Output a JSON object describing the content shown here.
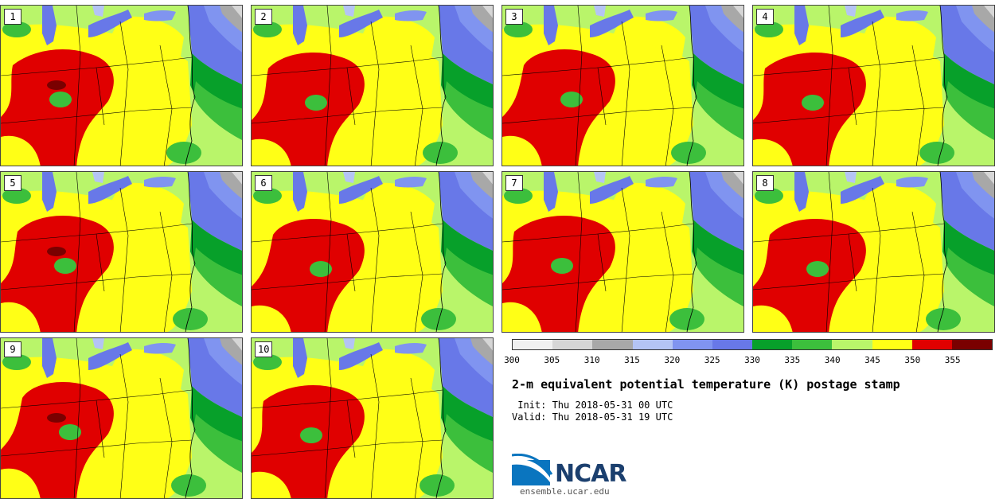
{
  "panels": [
    "1",
    "2",
    "3",
    "4",
    "5",
    "6",
    "7",
    "8",
    "9",
    "10"
  ],
  "colorbar": {
    "bins": [
      {
        "range": "300-305",
        "color": "#f0f0f0"
      },
      {
        "range": "305-310",
        "color": "#d6d6d6"
      },
      {
        "range": "310-315",
        "color": "#a8a8a8"
      },
      {
        "range": "315-320",
        "color": "#b4c4f4"
      },
      {
        "range": "320-325",
        "color": "#8094f0"
      },
      {
        "range": "325-330",
        "color": "#6878e8"
      },
      {
        "range": "330-335",
        "color": "#07a02a"
      },
      {
        "range": "335-340",
        "color": "#3cbf3c"
      },
      {
        "range": "340-345",
        "color": "#b9f56a"
      },
      {
        "range": "345-350",
        "color": "#ffff16"
      },
      {
        "range": "350-355",
        "color": "#e00000"
      },
      {
        "range": "355-360",
        "color": "#7a0000"
      }
    ],
    "tick_labels": [
      "300",
      "305",
      "310",
      "315",
      "320",
      "325",
      "330",
      "335",
      "340",
      "345",
      "350",
      "355"
    ]
  },
  "title": "2-m equivalent potential temperature (K) postage stamp",
  "init_text": " Init: Thu 2018-05-31 00 UTC",
  "valid_text": "Valid: Thu 2018-05-31 19 UTC",
  "logo": {
    "name": "NCAR",
    "url": "ensemble.ucar.edu"
  }
}
